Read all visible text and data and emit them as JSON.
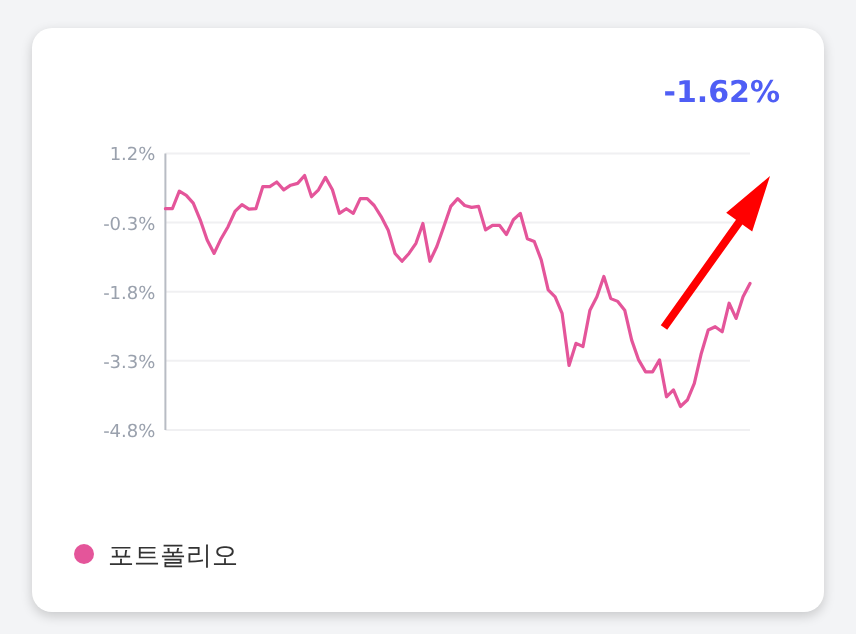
{
  "chart_data": {
    "type": "line",
    "annotations": [
      "-1.62%"
    ],
    "categories": [
      null,
      null,
      null,
      null,
      null,
      null,
      null,
      null,
      null,
      null,
      null,
      null,
      null,
      null,
      null,
      null,
      null,
      null,
      null,
      null,
      null,
      null,
      null,
      null,
      null,
      null,
      null,
      null,
      null,
      null,
      null,
      null,
      null,
      null,
      null,
      null,
      null,
      null,
      null,
      null,
      null,
      null,
      null,
      null,
      null,
      null,
      null,
      null,
      null,
      null,
      null,
      null,
      null,
      null,
      null,
      null,
      null,
      null,
      null,
      null,
      null,
      null,
      null,
      null,
      null,
      null,
      null,
      null,
      null,
      null,
      null,
      null,
      null,
      null,
      null,
      null,
      null,
      null,
      null,
      null,
      null,
      null,
      null,
      null,
      null
    ],
    "series": [
      {
        "name": "포트폴리오",
        "color": "#e4559a",
        "values": [
          0.0,
          0.0,
          0.38,
          0.29,
          0.12,
          -0.24,
          -0.68,
          -0.97,
          -0.65,
          -0.39,
          -0.06,
          0.09,
          -0.01,
          0.0,
          0.48,
          0.48,
          0.58,
          0.41,
          0.51,
          0.55,
          0.72,
          0.26,
          0.41,
          0.68,
          0.41,
          -0.1,
          0.0,
          -0.1,
          0.22,
          0.22,
          0.07,
          -0.17,
          -0.46,
          -0.97,
          -1.14,
          -0.97,
          -0.75,
          -0.32,
          -1.14,
          -0.82,
          -0.39,
          0.05,
          0.22,
          0.07,
          0.03,
          0.05,
          -0.46,
          -0.36,
          -0.36,
          -0.56,
          -0.24,
          -0.1,
          -0.65,
          -0.71,
          -1.11,
          -1.76,
          -1.91,
          -2.27,
          -3.4,
          -2.92,
          -2.99,
          -2.2,
          -1.91,
          -1.47,
          -1.95,
          -2.01,
          -2.2,
          -2.85,
          -3.28,
          -3.54,
          -3.54,
          -3.28,
          -4.08,
          -3.93,
          -4.29,
          -4.15,
          -3.79,
          -3.14,
          -2.63,
          -2.56,
          -2.67,
          -2.05,
          -2.38,
          -1.91,
          -1.62
        ]
      }
    ],
    "ylim": [
      -4.8,
      1.2
    ],
    "yticks": [
      {
        "value": 1.2,
        "label": "1.2%"
      },
      {
        "value": -0.3,
        "label": "-0.3%"
      },
      {
        "value": -1.8,
        "label": "-1.8%"
      },
      {
        "value": -3.3,
        "label": "-3.3%"
      },
      {
        "value": -4.8,
        "label": "-4.8%"
      }
    ],
    "tick_labels": "y",
    "grid": "y",
    "legend": "bottom left",
    "marker": "none",
    "line_style": "solid"
  }
}
